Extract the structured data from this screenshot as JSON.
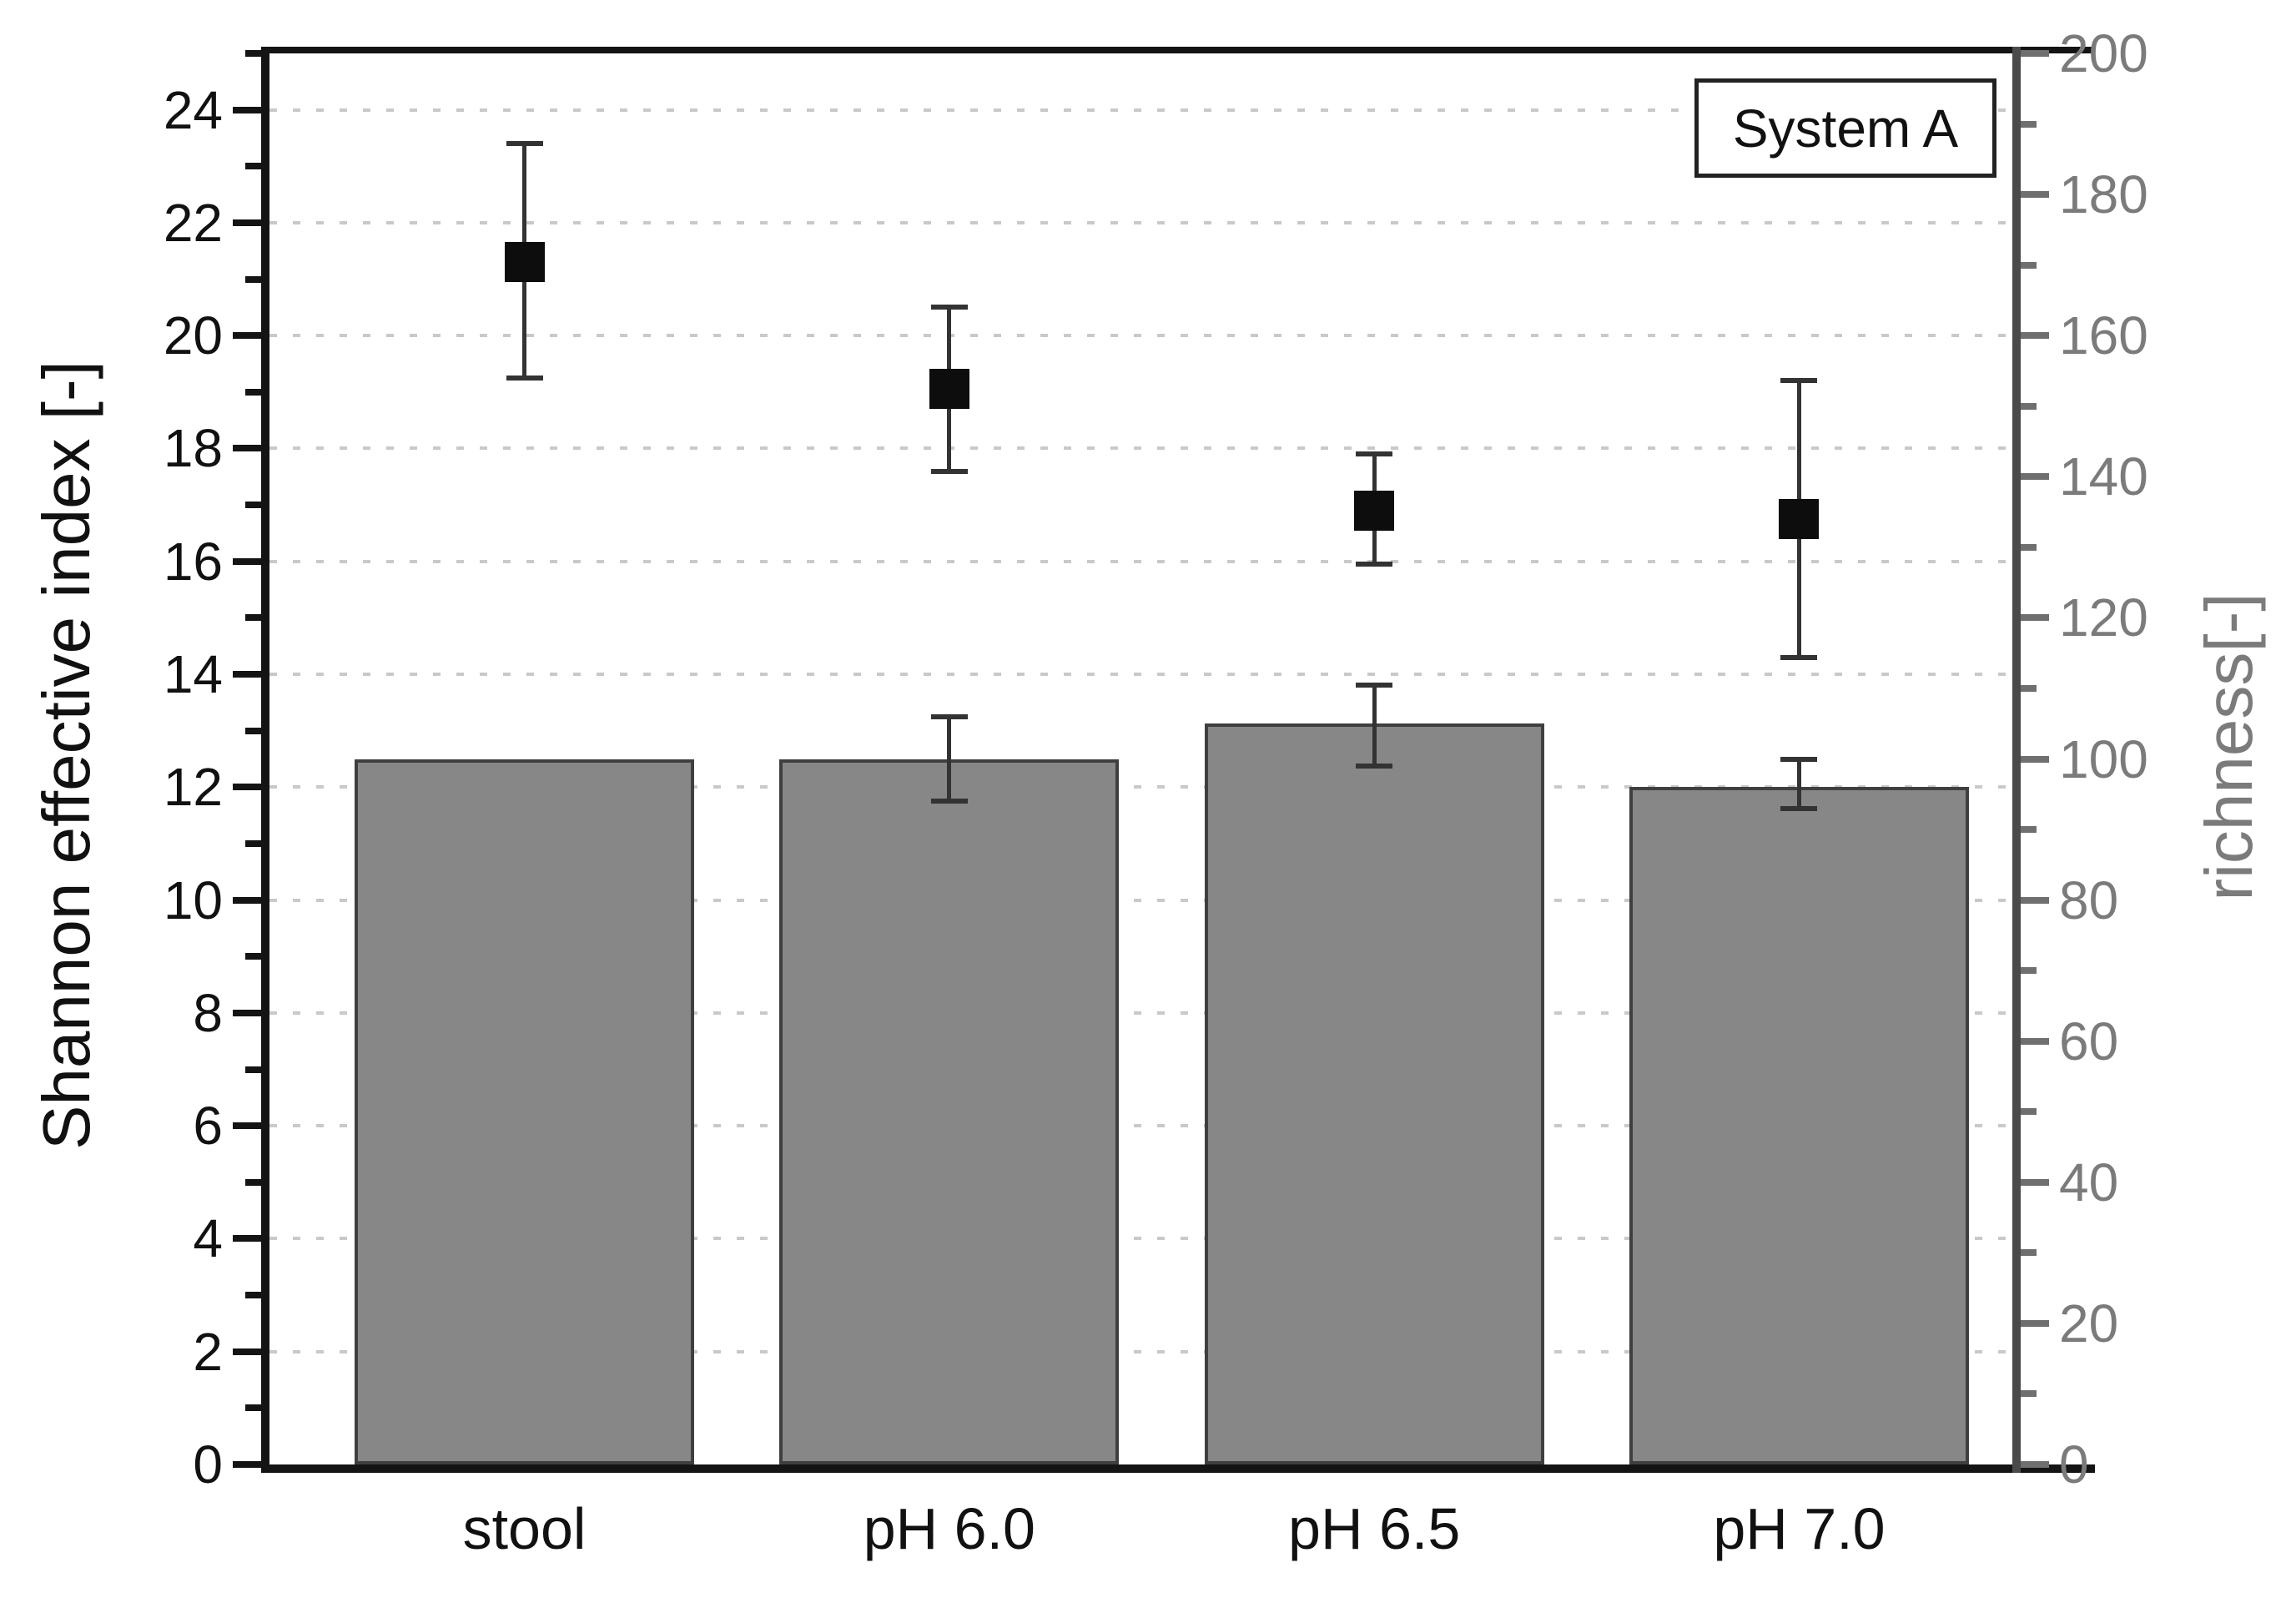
{
  "figure": {
    "background": "#ffffff",
    "legend": {
      "text": "System A",
      "position": "top-right-inside"
    }
  },
  "chart_data": {
    "type": "bar",
    "subtype": "combo-bar-and-scatter-with-error-bars",
    "categories": [
      "stool",
      "pH 6.0",
      "pH 6.5",
      "pH 7.0"
    ],
    "series": [
      {
        "name": "richness",
        "type": "bar",
        "axis": "right",
        "marker_color": "#878787",
        "values": [
          100,
          100,
          105,
          96
        ],
        "err_plus": [
          0,
          6,
          5.5,
          4
        ],
        "err_minus": [
          0,
          6,
          6,
          3
        ]
      },
      {
        "name": "Shannon effective index",
        "type": "scatter-square",
        "axis": "left",
        "marker_color": "#0d0d0d",
        "values": [
          21.3,
          19.05,
          16.9,
          16.75
        ],
        "err_plus": [
          2.1,
          1.45,
          1.0,
          2.45
        ],
        "err_minus": [
          2.05,
          1.45,
          0.95,
          2.45
        ]
      }
    ],
    "left_axis": {
      "label": "Shannon effective index [-]",
      "min": 0,
      "max": 25,
      "major_tick_step": 2,
      "minor_tick_step": 1,
      "tick_labels": [
        0,
        2,
        4,
        6,
        8,
        10,
        12,
        14,
        16,
        18,
        20,
        22,
        24
      ],
      "color": "#111111"
    },
    "right_axis": {
      "label": "richness[-]",
      "min": 0,
      "max": 200,
      "major_tick_step": 20,
      "minor_tick_step": 10,
      "tick_labels": [
        0,
        20,
        40,
        60,
        80,
        100,
        120,
        140,
        160,
        180,
        200
      ],
      "color": "#7b7b7b"
    },
    "x_axis": {
      "tick_marks": false
    },
    "grid": {
      "horizontal_dotted_at_left_majors": true,
      "color": "#c9c9c9"
    },
    "legend_entries": [
      "System A"
    ]
  },
  "colors": {
    "bar_fill": "#878787",
    "bar_border": "#3f3f3f",
    "square_marker": "#0d0d0d",
    "error_bar": "#333333",
    "left_axis": "#111111",
    "right_axis_text": "#7b7b7b",
    "right_spine": "#4a4a4a",
    "gridline": "#c9c9c9"
  }
}
